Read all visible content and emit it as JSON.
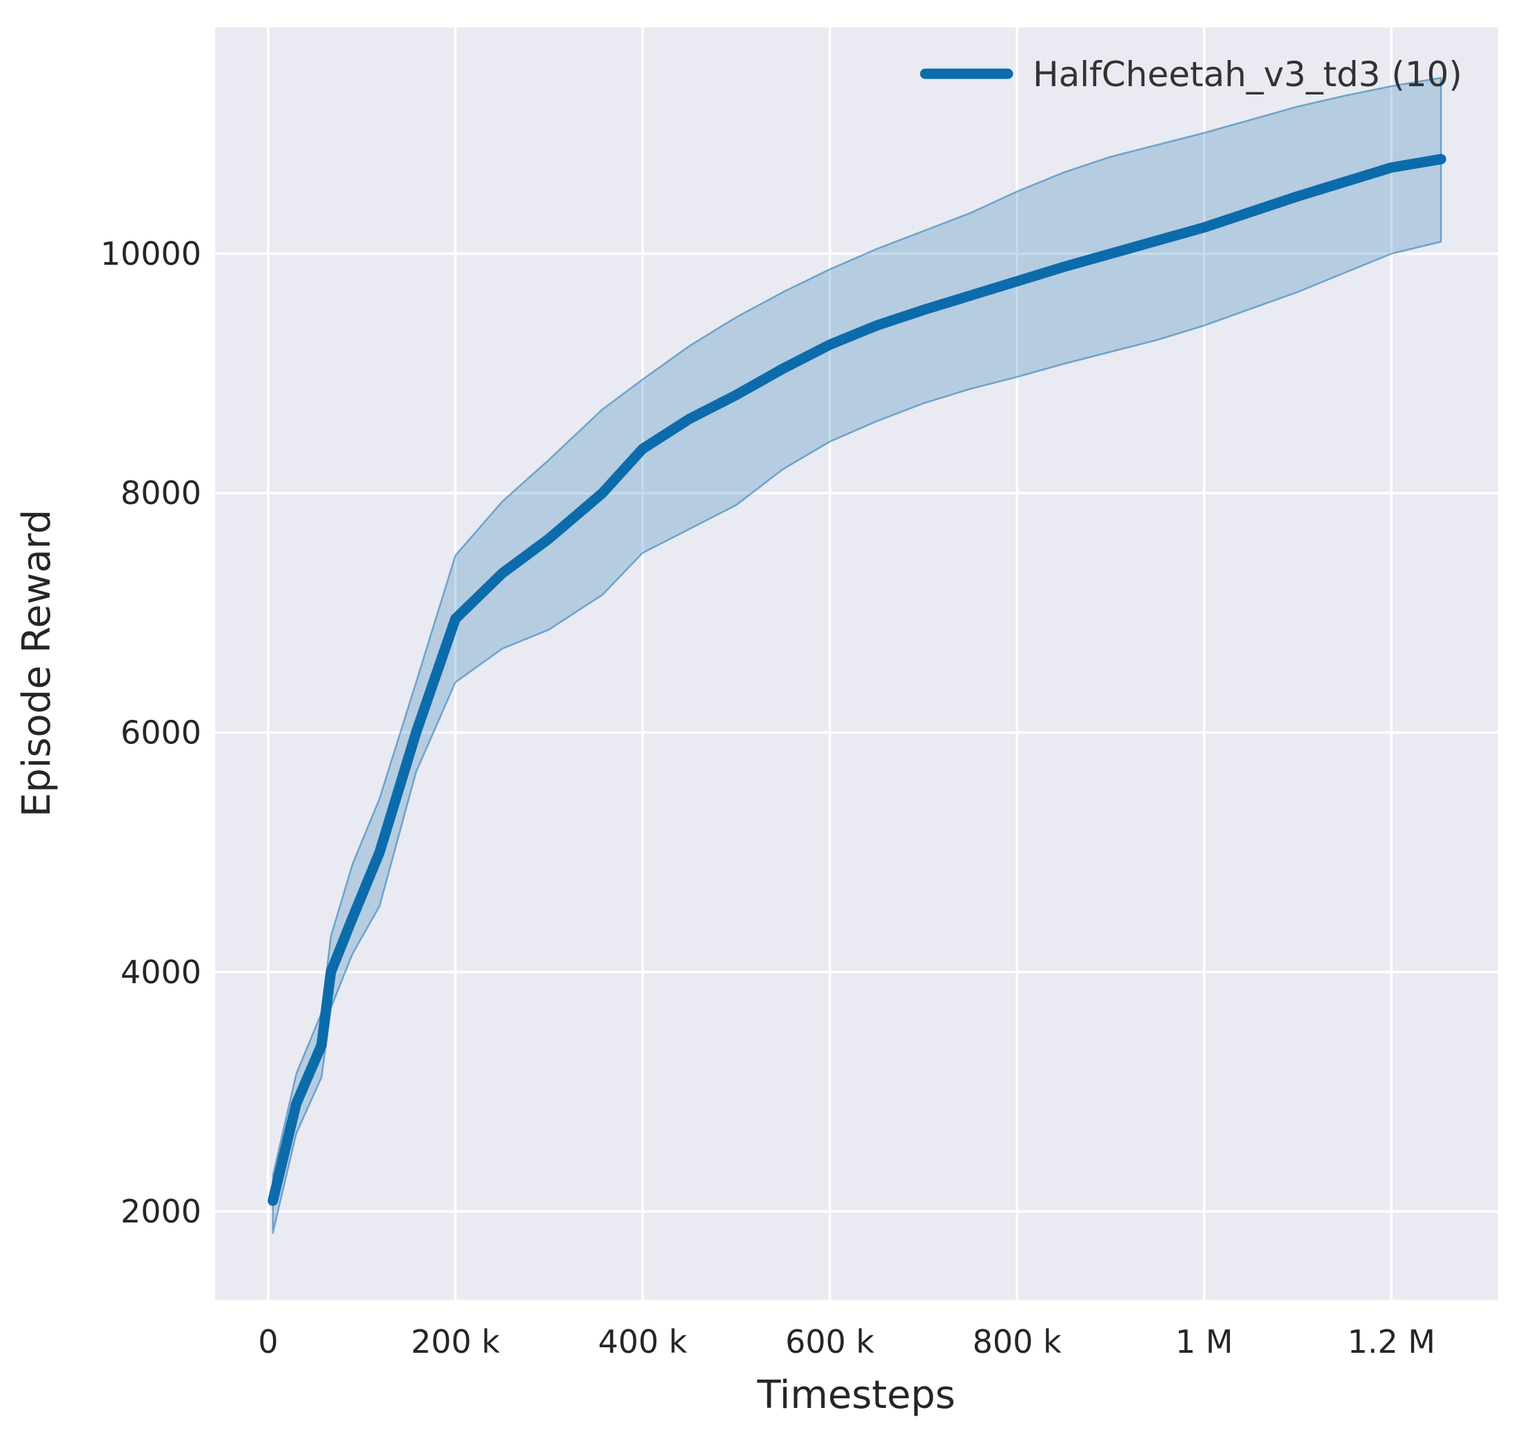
{
  "chart_data": {
    "type": "line",
    "title": "",
    "xlabel": "Timesteps",
    "ylabel": "Episode Reward",
    "grid": true,
    "legend_position": "upper right",
    "legend_frame": false,
    "colors": {
      "figure_background": "#ffffff",
      "plot_background": "#eaeaf2",
      "grid_color": "#ffffff",
      "text_color": "#262626",
      "line_color": "#0c6bab",
      "band_color": "#0c6bab",
      "band_opacity": 0.24,
      "band_edge_opacity": 0.5
    },
    "xlim": [
      -56700,
      1314000
    ],
    "ylim": [
      1263,
      11889
    ],
    "x_ticks": [
      {
        "value": 0,
        "label": "0"
      },
      {
        "value": 200000,
        "label": "200 k"
      },
      {
        "value": 400000,
        "label": "400 k"
      },
      {
        "value": 600000,
        "label": "600 k"
      },
      {
        "value": 800000,
        "label": "800 k"
      },
      {
        "value": 1000000,
        "label": "1 M"
      },
      {
        "value": 1200000,
        "label": "1.2 M"
      }
    ],
    "y_ticks": [
      {
        "value": 2000,
        "label": "2000"
      },
      {
        "value": 4000,
        "label": "4000"
      },
      {
        "value": 6000,
        "label": "6000"
      },
      {
        "value": 8000,
        "label": "8000"
      },
      {
        "value": 10000,
        "label": "10000"
      }
    ],
    "series": [
      {
        "name": "HalfCheetah_v3_td3 (10)",
        "x": [
          5000,
          30000,
          57000,
          67000,
          90000,
          119000,
          158000,
          200000,
          250000,
          300000,
          357000,
          400000,
          450000,
          500000,
          550000,
          600000,
          650000,
          700000,
          750000,
          800000,
          850000,
          900000,
          950000,
          1000000,
          1050000,
          1100000,
          1150000,
          1200000,
          1253000
        ],
        "mean": [
          2090,
          2900,
          3390,
          4000,
          4450,
          5000,
          6000,
          6950,
          7330,
          7620,
          8000,
          8370,
          8620,
          8820,
          9040,
          9240,
          9400,
          9530,
          9650,
          9770,
          9890,
          10000,
          10110,
          10220,
          10350,
          10480,
          10600,
          10720,
          10790
        ],
        "band_low": [
          1820,
          2650,
          3120,
          3700,
          4150,
          4550,
          5670,
          6420,
          6700,
          6860,
          7150,
          7500,
          7700,
          7900,
          8200,
          8430,
          8600,
          8750,
          8870,
          8970,
          9080,
          9180,
          9280,
          9400,
          9540,
          9680,
          9840,
          10000,
          10100
        ],
        "band_high": [
          2300,
          3150,
          3660,
          4300,
          4900,
          5450,
          6420,
          7480,
          7930,
          8280,
          8700,
          8950,
          9230,
          9470,
          9680,
          9870,
          10040,
          10190,
          10340,
          10520,
          10680,
          10810,
          10910,
          11010,
          11120,
          11230,
          11320,
          11400,
          11470
        ]
      }
    ]
  }
}
